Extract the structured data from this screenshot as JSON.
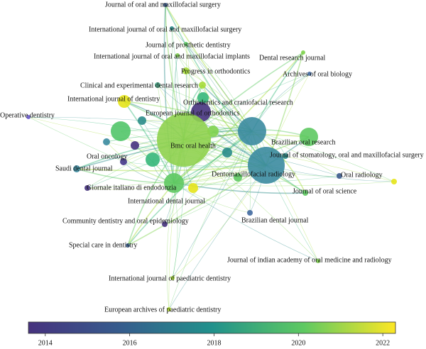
{
  "nodes": [
    {
      "label": "Journal of oral and maxillofacial surgery"
    },
    {
      "label": "International journal of oral and maxillofacial surgery"
    },
    {
      "label": "Journal of prosthetic dentistry"
    },
    {
      "label": "International journal of oral and maxillofacial implants"
    },
    {
      "label": "Dental research journal"
    },
    {
      "label": "Progress in orthodontics"
    },
    {
      "label": "Archives of oral biology"
    },
    {
      "label": "Clinical and experimental dental research"
    },
    {
      "label": "International journal of dentistry"
    },
    {
      "label": "Orthodontics and craniofacial research"
    },
    {
      "label": "European journal of orthodontics"
    },
    {
      "label": "Operative dentistry"
    },
    {
      "label": "Brazilian oral research"
    },
    {
      "label": "Bmc oral health"
    },
    {
      "label": "Journal of stomatology, oral and maxillofacial surgery"
    },
    {
      "label": "Oral oncology"
    },
    {
      "label": "Saudi dental journal"
    },
    {
      "label": "Dentomaxillofacial radiology"
    },
    {
      "label": "Oral radiology"
    },
    {
      "label": "Giornale italiano di endodonzia"
    },
    {
      "label": "Journal of oral science"
    },
    {
      "label": "International dental journal"
    },
    {
      "label": "Brazilian dental journal"
    },
    {
      "label": "Community dentistry and oral epidemiology"
    },
    {
      "label": "Special care in dentistry"
    },
    {
      "label": "Journal of indian academy of oral medicine and radiology"
    },
    {
      "label": "International journal of paediatric dentistry"
    },
    {
      "label": "European archives of paediatric dentistry"
    }
  ],
  "colorbar": {
    "lim": [
      2013.6,
      2022.3
    ],
    "ticks": [
      2014,
      2016,
      2018,
      2020,
      2022
    ]
  }
}
